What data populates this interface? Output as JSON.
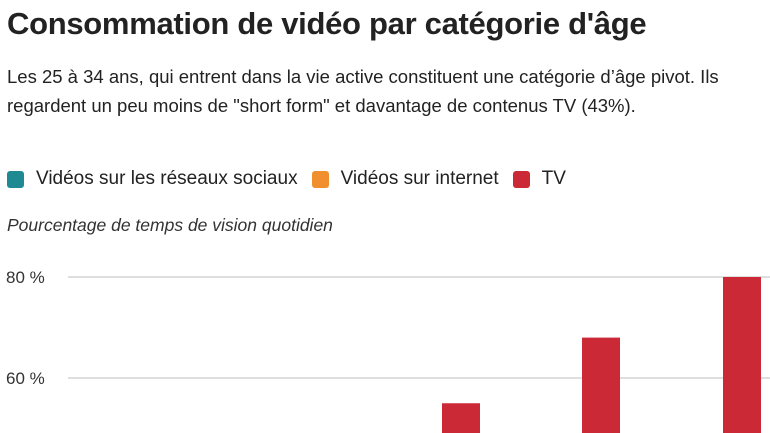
{
  "title": "Consommation de vidéo par catégorie d'âge",
  "subtitle": "Les 25 à 34 ans, qui entrent dans la vie active constituent une catégorie d’âge pivot. Ils regardent un peu moins de \"short form\" et davantage de contenus TV (43%).",
  "chart_data": {
    "type": "bar",
    "title": "Consommation de vidéo par catégorie d'âge",
    "ylabel": "Pourcentage de temps de vision quotidien",
    "legend_position": "top-left",
    "grid": true,
    "y_ticks": [
      {
        "value": 80,
        "label": "80 %"
      },
      {
        "value": 60,
        "label": "60 %"
      }
    ],
    "series": [
      {
        "name": "Vidéos sur les réseaux sociaux",
        "color": "#1f8a92",
        "values": []
      },
      {
        "name": "Vidéos sur internet",
        "color": "#f18f2f",
        "values": []
      },
      {
        "name": "TV",
        "color": "#cc2936",
        "values": [
          55,
          68,
          80
        ]
      }
    ]
  }
}
